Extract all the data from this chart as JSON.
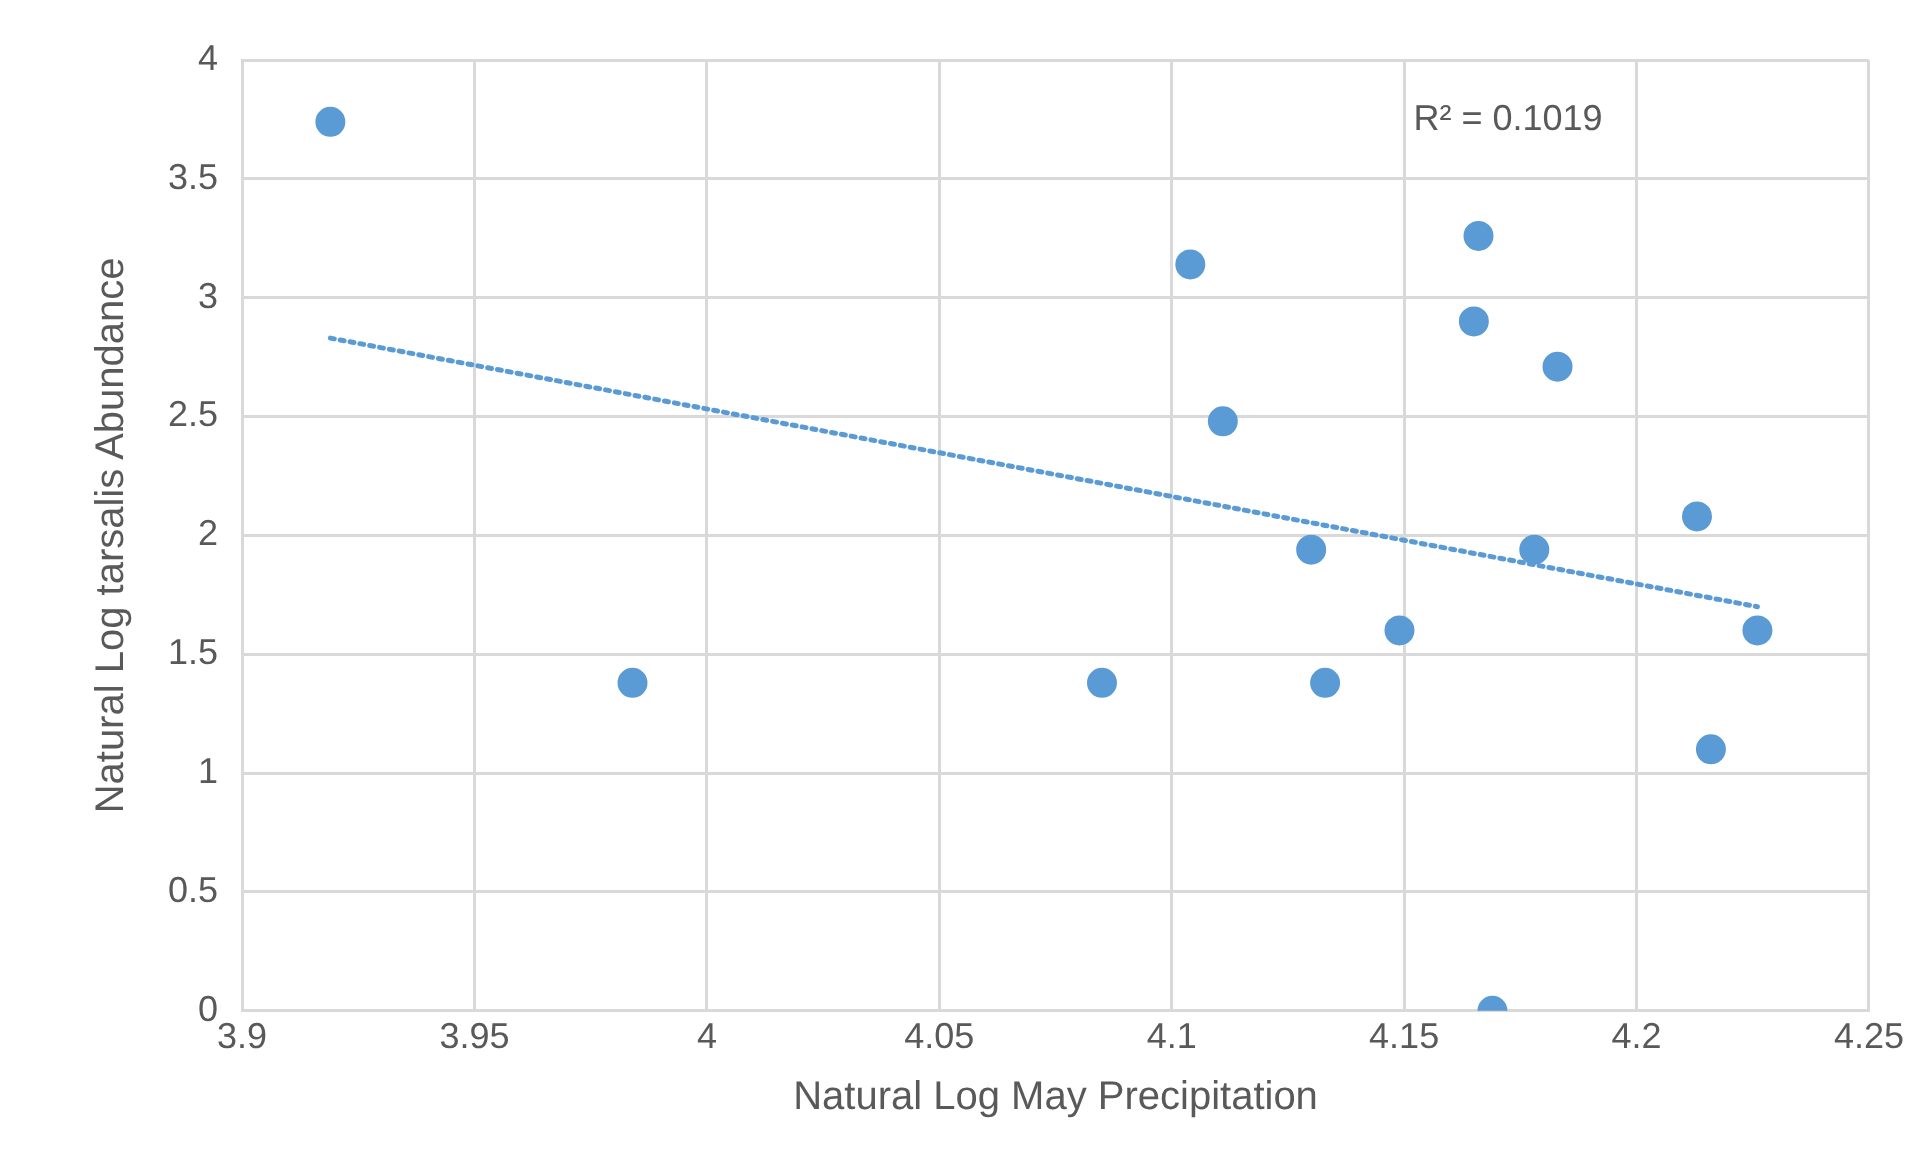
{
  "chart_data": {
    "type": "scatter",
    "xlabel": "Natural Log May Precipitation",
    "ylabel": "Natural Log tarsalis Abundance",
    "xlim": [
      3.9,
      4.25
    ],
    "xticks": [
      3.9,
      3.95,
      4,
      4.05,
      4.1,
      4.15,
      4.2,
      4.25
    ],
    "ylim": [
      0,
      4
    ],
    "yticks": [
      0,
      0.5,
      1,
      1.5,
      2,
      2.5,
      3,
      3.5,
      4
    ],
    "grid": true,
    "legend": false,
    "marker": "circle",
    "annotations": [
      "R² = 0.1019"
    ],
    "series": [
      {
        "color": "#5b9bd5",
        "x": [
          3.919,
          3.984,
          4.085,
          4.104,
          4.111,
          4.13,
          4.133,
          4.149,
          4.165,
          4.166,
          4.169,
          4.178,
          4.183,
          4.213,
          4.216,
          4.226
        ],
        "values": [
          3.74,
          1.38,
          1.38,
          3.14,
          2.48,
          1.94,
          1.38,
          1.6,
          2.9,
          3.26,
          0,
          1.94,
          2.71,
          2.08,
          1.1,
          1.6
        ]
      },
      {
        "type": "line",
        "line_style": "dotted",
        "marker": "none",
        "color": "#5b9bd5",
        "x": [
          3.919,
          4.226
        ],
        "values": [
          2.83,
          1.7
        ]
      }
    ]
  }
}
